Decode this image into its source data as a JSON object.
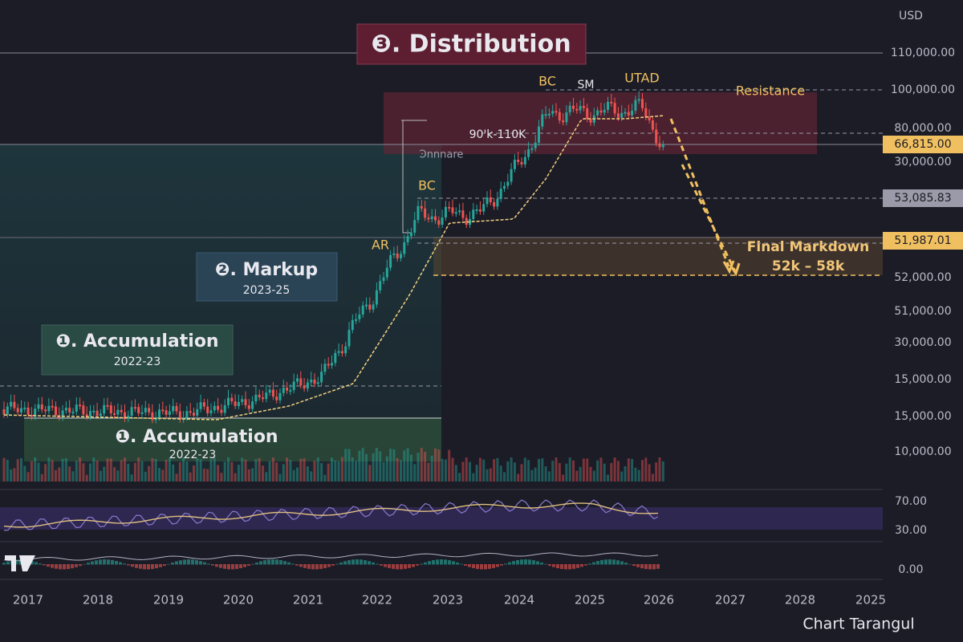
{
  "header": {
    "currency": "USD"
  },
  "price_axis": [
    "110,000.00",
    "100,000.00",
    "80,000.00",
    "66,815.00",
    "30,000.00",
    "53,085.83",
    "51,987.01",
    "52,000.00",
    "51,000.00",
    "30,000.00",
    "15,000.00",
    "15,000.00",
    "10,000.00"
  ],
  "indicator_axis": [
    "70.00",
    "30.00",
    "0.00"
  ],
  "time_axis": [
    "2017",
    "2018",
    "2019",
    "2020",
    "2021",
    "2022",
    "2023",
    "2024",
    "2025",
    "2026",
    "2027",
    "2028",
    "2025"
  ],
  "annotations": {
    "distribution": "❸. Distribution",
    "bc_top": "BC",
    "sm": "SM",
    "utad": "UTAD",
    "resistance": "Resistance",
    "range": "90'k-110K",
    "zone": "Ͽnnnare",
    "bc_mid": "BC",
    "ar": "AR",
    "markup": {
      "title": "❷. Markup",
      "years": "2023-25"
    },
    "accumulation_box": {
      "title": "❶. Accumulation",
      "years": "2022-23"
    },
    "accumulation_band": {
      "title": "❶. Accumulation",
      "years": "2022-23"
    },
    "final_markdown": {
      "title": "Final Markdown",
      "range": "52k – 58k"
    }
  },
  "footer": {
    "brand": "Chart Tarangul"
  }
}
